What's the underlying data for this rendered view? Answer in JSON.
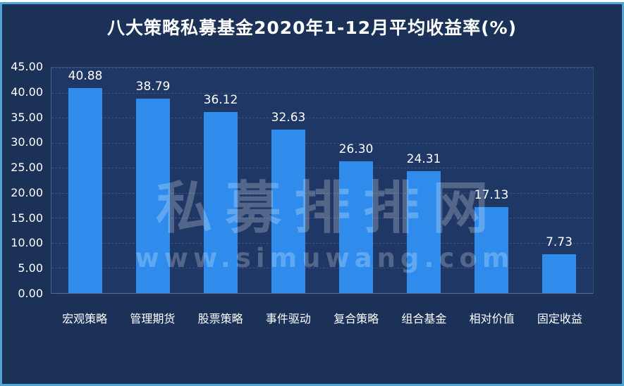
{
  "title": "八大策略私募基金2020年1-12月平均收益率(%)",
  "watermark": {
    "brand": "私募排排网",
    "url": "www.simuwang.com"
  },
  "colors": {
    "panel_background": "#1b3158",
    "plot_background": "#1e3765",
    "panel_border": "#4fa6d4",
    "bar": "#2f8ced",
    "text": "#ffffff",
    "gridline": "rgba(151,180,226,0.22)",
    "watermark": "rgba(255,255,255,0.24)"
  },
  "chart_data": {
    "type": "bar",
    "title": "八大策略私募基金2020年1-12月平均收益率(%)",
    "categories": [
      "宏观策略",
      "管理期货",
      "股票策略",
      "事件驱动",
      "复合策略",
      "组合基金",
      "相对价值",
      "固定收益"
    ],
    "values": [
      40.88,
      38.79,
      36.12,
      32.63,
      26.3,
      24.31,
      17.13,
      7.73
    ],
    "value_labels": [
      "40.88",
      "38.79",
      "36.12",
      "32.63",
      "26.30",
      "24.31",
      "17.13",
      "7.73"
    ],
    "xlabel": "",
    "ylabel": "",
    "ylim": [
      0,
      45
    ],
    "ytick_step": 5,
    "ytick_labels": [
      "45.00",
      "40.00",
      "35.00",
      "30.00",
      "25.00",
      "20.00",
      "15.00",
      "10.00",
      "5.00",
      "0.00"
    ],
    "grid": true,
    "gridline_style": "dashed",
    "legend": false,
    "bar_color": "#2f8ced",
    "value_label_position": "above-bar"
  }
}
